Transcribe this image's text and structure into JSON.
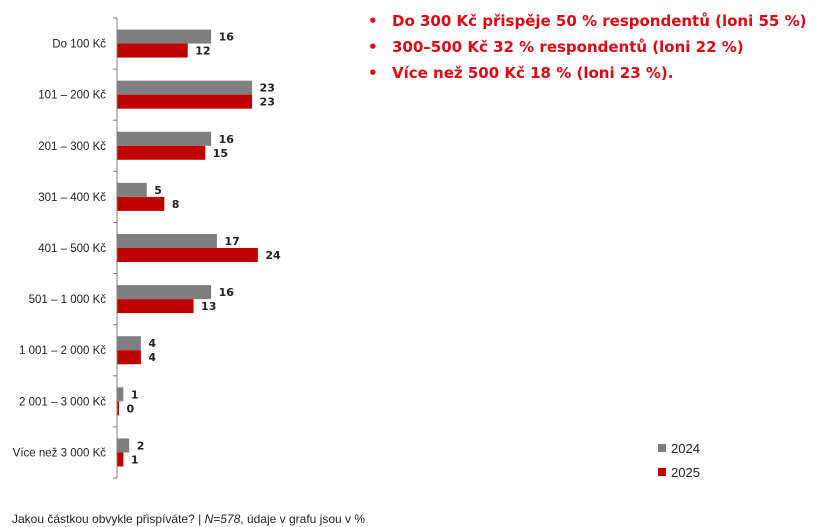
{
  "chart_data": {
    "type": "bar",
    "orientation": "horizontal",
    "categories": [
      "Do 100 Kč",
      "101 – 200 Kč",
      "201 – 300 Kč",
      "301 – 400 Kč",
      "401 – 500 Kč",
      "501 – 1 000 Kč",
      "1 001 – 2 000 Kč",
      "2 001 – 3 000 Kč",
      "Více než 3 000 Kč"
    ],
    "series": [
      {
        "name": "2024",
        "color": "#7f7f7f",
        "values": [
          16,
          23,
          16,
          5,
          17,
          16,
          4,
          1,
          2
        ]
      },
      {
        "name": "2025",
        "color": "#c00000",
        "values": [
          12,
          23,
          15,
          8,
          24,
          13,
          4,
          0,
          1
        ]
      }
    ],
    "xlim": [
      0,
      25
    ],
    "legend_position": "bottom-right",
    "grid": false
  },
  "bullets": [
    "Do 300 Kč přispěje 50 % respondentů (loni 55 %)",
    "300–500 Kč 32 % respondentů (loni 22 %)",
    "Více než 500 Kč 18 % (loni 23 %)."
  ],
  "bullet_marker": "•",
  "accent_color": "#e30613",
  "footnote": {
    "question": "Jakou částkou obvykle přispíváte?",
    "separator": "|",
    "n": "N=578",
    "note": "údaje v grafu jsou v %"
  }
}
